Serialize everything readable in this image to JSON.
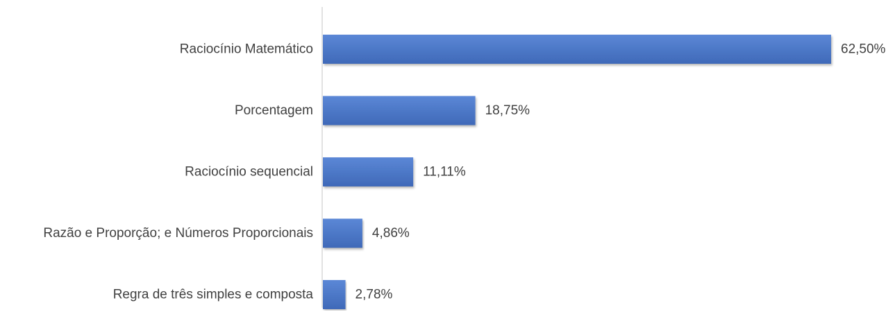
{
  "chart_data": {
    "type": "bar",
    "orientation": "horizontal",
    "categories": [
      "Raciocínio Matemático",
      "Porcentagem",
      "Raciocínio sequencial",
      "Razão e Proporção; e Números Proporcionais",
      "Regra de três simples e composta"
    ],
    "values": [
      62.5,
      18.75,
      11.11,
      4.86,
      2.78
    ],
    "value_labels": [
      "62,50%",
      "18,75%",
      "11,11%",
      "4,86%",
      "2,78%"
    ],
    "xlim": [
      0,
      62.5
    ],
    "grid": false,
    "legend": "none",
    "bar_color": "#4472C4",
    "axis_color": "#D9D9D9",
    "label_color": "#404040"
  }
}
